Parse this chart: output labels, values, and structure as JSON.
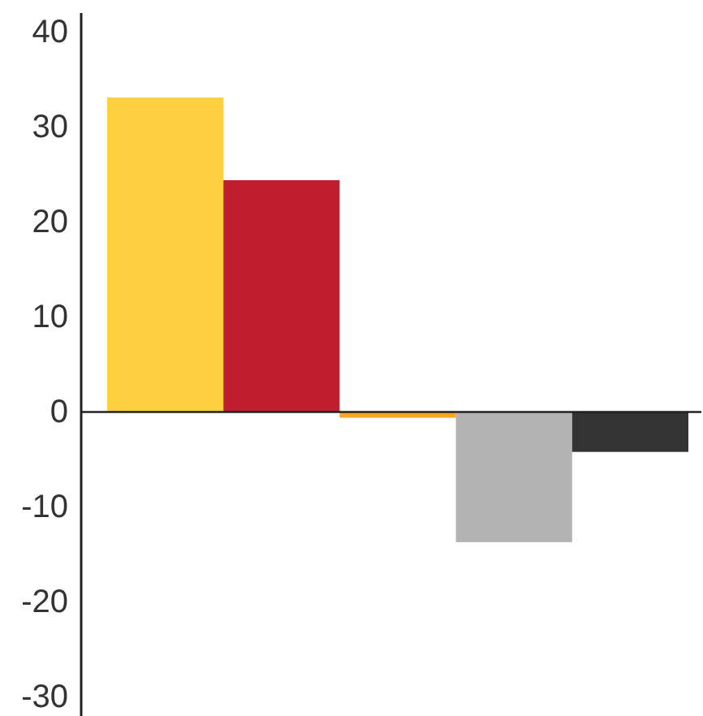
{
  "chart_data": {
    "type": "bar",
    "categories": [
      null,
      null,
      null,
      null,
      null
    ],
    "values": [
      33.1,
      24.4,
      -0.6,
      -13.7,
      -4.2
    ],
    "colors": [
      "#fcd03f",
      "#be1e2d",
      "#f5a623",
      "#b3b3b3",
      "#333333"
    ],
    "ylim": [
      -32,
      42
    ],
    "yticks": [
      -30,
      -20,
      -10,
      0,
      10,
      20,
      30,
      40
    ],
    "tick_labels": "y",
    "ref_lines": [
      {
        "axis": "y",
        "value": 0
      }
    ]
  }
}
